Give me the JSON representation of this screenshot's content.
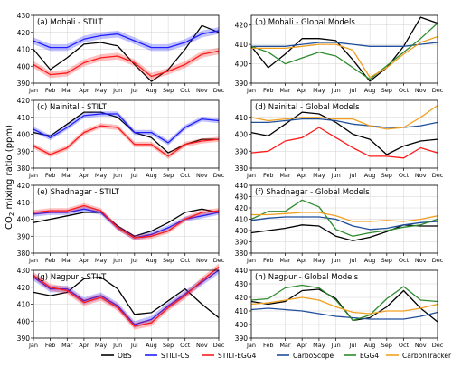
{
  "figure": {
    "ylabel_prefix": "CO",
    "ylabel_sub": "2",
    "ylabel_suffix": " mixing ratio (ppm)",
    "months": [
      "Jan",
      "Feb",
      "Mar",
      "Apr",
      "May",
      "Jun",
      "Jul",
      "Aug",
      "Sep",
      "Oct",
      "Nov",
      "Dec"
    ],
    "legend": [
      {
        "key": "obs",
        "name": "OBS",
        "color": "#000000"
      },
      {
        "key": "stilt_cs",
        "name": "STILT-CS",
        "color": "#1f1fff"
      },
      {
        "key": "stilt_egg4",
        "name": "STILT-EGG4",
        "color": "#ff1a1a"
      },
      {
        "key": "carboscope",
        "name": "CarboScope",
        "color": "#1f4e9a"
      },
      {
        "key": "egg4",
        "name": "EGG4",
        "color": "#2e8b2e"
      },
      {
        "key": "carbontracker",
        "name": "CarbonTracker",
        "color": "#f0a020"
      }
    ]
  },
  "chart_data": [
    {
      "type": "line",
      "title": "(a) Mohali - STILT",
      "ylim": [
        390,
        430
      ],
      "yticks": [
        390,
        400,
        410,
        420,
        430
      ],
      "series": [
        {
          "key": "obs",
          "values": [
            410,
            398,
            405,
            413,
            414,
            412,
            401,
            391,
            398,
            410,
            424,
            420
          ]
        },
        {
          "key": "stilt_cs",
          "values": [
            415,
            411,
            411,
            416,
            418,
            419,
            415,
            411,
            411,
            414,
            419,
            421
          ],
          "band": 2
        },
        {
          "key": "stilt_egg4",
          "values": [
            401,
            395,
            396,
            402,
            405,
            406,
            402,
            394,
            397,
            401,
            407,
            409
          ],
          "band": 2
        }
      ]
    },
    {
      "type": "line",
      "title": "(b) Mohali - Global Models",
      "ylim": [
        390,
        425
      ],
      "yticks": [
        390,
        400,
        410,
        420
      ],
      "series": [
        {
          "key": "obs",
          "values": [
            409,
            398,
            405,
            413,
            413,
            412,
            402,
            391,
            398,
            409,
            424,
            421
          ]
        },
        {
          "key": "carboscope",
          "values": [
            409,
            409,
            409,
            410,
            411,
            411,
            410,
            409,
            409,
            409,
            410,
            411
          ]
        },
        {
          "key": "egg4",
          "values": [
            409,
            406,
            400,
            403,
            406,
            404,
            398,
            392,
            399,
            406,
            413,
            421
          ]
        },
        {
          "key": "carbontracker",
          "values": [
            408,
            408,
            408,
            409,
            410,
            410,
            407,
            393,
            398,
            405,
            411,
            414
          ]
        }
      ]
    },
    {
      "type": "line",
      "title": "(c) Nainital - STILT",
      "ylim": [
        380,
        420
      ],
      "yticks": [
        380,
        390,
        400,
        410,
        420
      ],
      "series": [
        {
          "key": "obs",
          "values": [
            401,
            399,
            406,
            413,
            413,
            410,
            401,
            398,
            389,
            394,
            397,
            397
          ]
        },
        {
          "key": "stilt_cs",
          "values": [
            403,
            398,
            404,
            411,
            412,
            412,
            401,
            401,
            395,
            404,
            409,
            408
          ],
          "band": 1.5
        },
        {
          "key": "stilt_egg4",
          "values": [
            393,
            388,
            392,
            401,
            405,
            404,
            394,
            394,
            387,
            394,
            396,
            397
          ],
          "band": 1.5
        }
      ]
    },
    {
      "type": "line",
      "title": "(d) Nainital - Global Models",
      "ylim": [
        380,
        420
      ],
      "yticks": [
        380,
        390,
        400,
        410
      ],
      "series": [
        {
          "key": "obs",
          "values": [
            401,
            399,
            406,
            413,
            412,
            407,
            400,
            397,
            388,
            393,
            396,
            397
          ]
        },
        {
          "key": "stilt_egg4",
          "values": [
            389,
            390,
            396,
            398,
            404,
            398,
            392,
            387,
            387,
            386,
            392,
            389
          ]
        },
        {
          "key": "carboscope",
          "values": [
            407,
            407,
            408,
            409,
            409,
            408,
            406,
            405,
            404,
            404,
            405,
            407
          ]
        },
        {
          "key": "carbontracker",
          "values": [
            410,
            408,
            409,
            410,
            410,
            409,
            409,
            405,
            403,
            404,
            410,
            417
          ]
        }
      ]
    },
    {
      "type": "line",
      "title": "(e) Shadnagar - STILT",
      "ylim": [
        380,
        420
      ],
      "yticks": [
        380,
        390,
        400,
        410,
        420
      ],
      "series": [
        {
          "key": "obs",
          "values": [
            398,
            400,
            402,
            404,
            404,
            396,
            390,
            393,
            398,
            404,
            406,
            404
          ]
        },
        {
          "key": "stilt_cs",
          "values": [
            403,
            404,
            404,
            406,
            404,
            395,
            389,
            391,
            395,
            400,
            402,
            404
          ],
          "band": 1.5
        },
        {
          "key": "stilt_egg4",
          "values": [
            404,
            405,
            405,
            408,
            405,
            395,
            389,
            390,
            393,
            400,
            404,
            405
          ],
          "band": 1.5
        }
      ]
    },
    {
      "type": "line",
      "title": "(f) Shadnagar - Global Models",
      "ylim": [
        380,
        440
      ],
      "yticks": [
        380,
        390,
        400,
        410,
        420,
        430,
        440
      ],
      "series": [
        {
          "key": "obs",
          "values": [
            398,
            400,
            402,
            405,
            404,
            395,
            391,
            394,
            399,
            405,
            404,
            404
          ]
        },
        {
          "key": "carboscope",
          "values": [
            409,
            411,
            412,
            412,
            412,
            410,
            404,
            401,
            402,
            405,
            407,
            408
          ]
        },
        {
          "key": "egg4",
          "values": [
            410,
            417,
            417,
            427,
            421,
            401,
            395,
            398,
            400,
            403,
            405,
            410
          ]
        },
        {
          "key": "carbontracker",
          "values": [
            414,
            414,
            415,
            416,
            416,
            413,
            408,
            408,
            409,
            408,
            410,
            413
          ]
        }
      ]
    },
    {
      "type": "line",
      "title": "(g) Nagpur - STILT",
      "ylim": [
        390,
        430
      ],
      "yticks": [
        390,
        400,
        410,
        420,
        430
      ],
      "series": [
        {
          "key": "obs",
          "values": [
            417,
            415,
            417,
            425,
            426,
            419,
            404,
            405,
            412,
            419,
            410,
            402
          ]
        },
        {
          "key": "stilt_cs",
          "values": [
            426,
            419,
            419,
            412,
            415,
            409,
            398,
            401,
            409,
            416,
            423,
            430
          ],
          "band": 2
        },
        {
          "key": "stilt_egg4",
          "values": [
            427,
            420,
            418,
            411,
            414,
            408,
            397,
            399,
            408,
            415,
            424,
            432
          ],
          "band": 2
        }
      ]
    },
    {
      "type": "line",
      "title": "(h) Nagpur - Global Models",
      "ylim": [
        390,
        440
      ],
      "yticks": [
        390,
        400,
        410,
        420,
        430,
        440
      ],
      "series": [
        {
          "key": "obs",
          "values": [
            417,
            415,
            417,
            425,
            426,
            419,
            403,
            405,
            413,
            425,
            412,
            402
          ]
        },
        {
          "key": "carboscope",
          "values": [
            411,
            412,
            411,
            410,
            408,
            406,
            405,
            404,
            404,
            404,
            406,
            409
          ]
        },
        {
          "key": "egg4",
          "values": [
            418,
            419,
            427,
            429,
            427,
            418,
            403,
            407,
            419,
            428,
            418,
            417
          ]
        },
        {
          "key": "carbontracker",
          "values": [
            415,
            416,
            418,
            420,
            418,
            413,
            409,
            408,
            410,
            410,
            412,
            415
          ]
        }
      ]
    }
  ]
}
